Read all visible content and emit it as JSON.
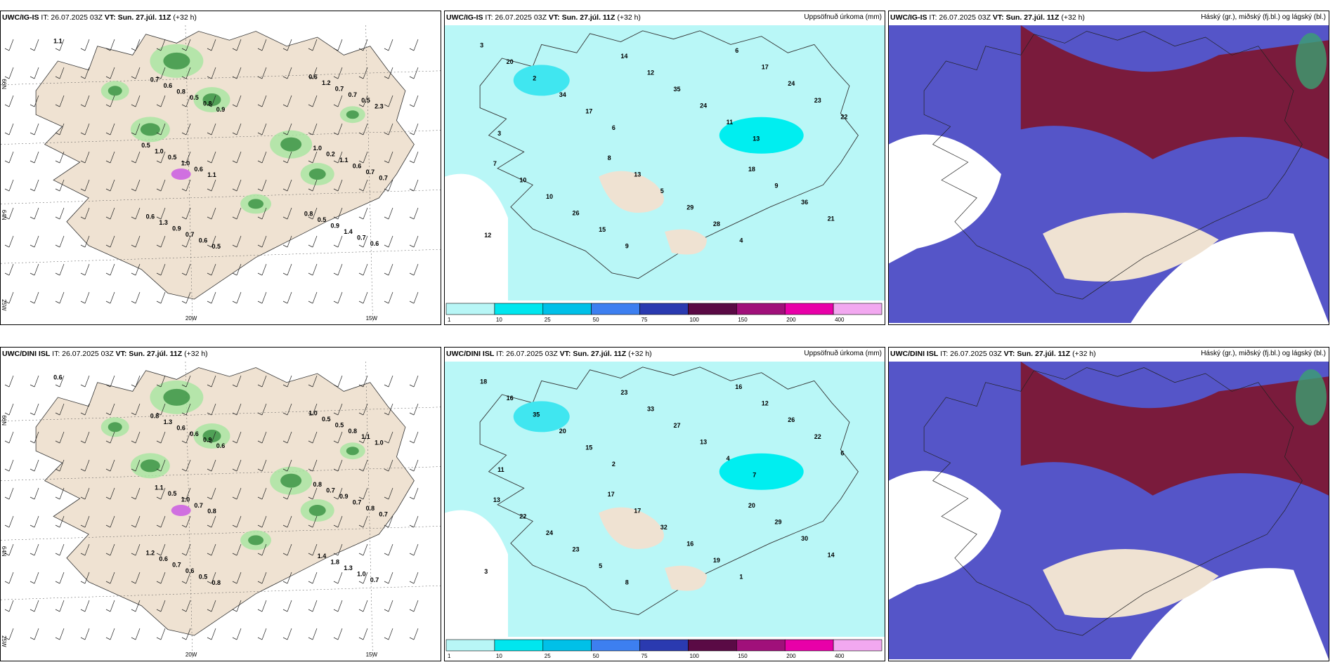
{
  "panels": [
    {
      "model": "UWC/IG-IS",
      "it": "26.07.2025 03Z",
      "vt": "Sun. 27.júl. 11Z",
      "lead": "(+32 h)",
      "title": "",
      "type": "wind",
      "values": [
        "1.1",
        "0.9",
        "0.7",
        "0.5",
        "2.3",
        "1.1",
        "0.6",
        "0.8",
        "0.7",
        "0.6",
        "0.5",
        "0.6",
        "0.7",
        "0.5",
        "0.6",
        "0.7",
        "0.7",
        "1.0",
        "1.4",
        "0.8",
        "1.1",
        "0.9",
        "0.7",
        "0.5",
        "0.9",
        "0.6",
        "0.2",
        "1.3",
        "1.2",
        "1.0",
        "0.5",
        "0.7",
        "1.0",
        "0.6",
        "0.6",
        "0.5",
        "0.8"
      ]
    },
    {
      "model": "UWC/IG-IS",
      "it": "26.07.2025 03Z",
      "vt": "Sun. 27.júl. 11Z",
      "lead": "(+32 h)",
      "title": "Uppsöfnuð úrkoma (mm)",
      "type": "precip",
      "values": [
        "3",
        "8",
        "6",
        "7",
        "14",
        "18",
        "20",
        "13",
        "17",
        "10",
        "12",
        "9",
        "2",
        "5",
        "24",
        "10",
        "35",
        "36",
        "34",
        "29",
        "23",
        "26",
        "24",
        "21",
        "17",
        "28",
        "22",
        "15",
        "11",
        "12",
        "6",
        "4",
        "3",
        "9",
        "13"
      ]
    },
    {
      "model": "UWC/IG-IS",
      "it": "26.07.2025 03Z",
      "vt": "Sun. 27.júl. 11Z",
      "lead": "(+32 h)",
      "title": "Háský (gr.), miðský (fj.bl.) og lágský (bl.)",
      "type": "cloud",
      "values": []
    },
    {
      "model": "UWC/DINI ISL",
      "it": "26.07.2025 03Z",
      "vt": "Sun. 27.júl. 11Z",
      "lead": "(+32 h)",
      "title": "",
      "type": "wind",
      "values": [
        "0.6",
        "0.6",
        "0.7",
        "0.8",
        "1.0",
        "0.8",
        "0.7",
        "0.9",
        "0.8",
        "0.5",
        "1.1",
        "0.7",
        "1.0",
        "0.6",
        "0.7",
        "0.6",
        "0.8",
        "1.0",
        "1.3",
        "0.6",
        "0.9",
        "0.7",
        "0.5",
        "0.5",
        "1.8",
        "1.3",
        "0.7",
        "0.6",
        "0.5",
        "1.1",
        "1.4",
        "0.8",
        "0.8",
        "1.2",
        "1.0"
      ]
    },
    {
      "model": "UWC/DINI ISL",
      "it": "26.07.2025 03Z",
      "vt": "Sun. 27.júl. 11Z",
      "lead": "(+32 h)",
      "title": "Uppsöfnuð úrkoma (mm)",
      "type": "precip",
      "values": [
        "18",
        "17",
        "16",
        "13",
        "23",
        "20",
        "16",
        "17",
        "12",
        "22",
        "33",
        "29",
        "35",
        "32",
        "26",
        "24",
        "27",
        "30",
        "20",
        "16",
        "22",
        "23",
        "13",
        "14",
        "15",
        "19",
        "6",
        "5",
        "4",
        "3",
        "2",
        "1",
        "11",
        "8",
        "7"
      ]
    },
    {
      "model": "UWC/DINI ISL",
      "it": "26.07.2025 03Z",
      "vt": "Sun. 27.júl. 11Z",
      "lead": "(+32 h)",
      "title": "Háský (gr.), miðský (fj.bl.) og lágský (bl.)",
      "type": "cloud",
      "values": []
    }
  ],
  "axis_labels": {
    "lon_left": "20W",
    "lon_right": "15W",
    "lat_top": "66N",
    "lat_mid": "64N",
    "lat_bottom": "25W"
  },
  "colorbar": {
    "labels": [
      "1",
      "10",
      "25",
      "50",
      "75",
      "100",
      "150",
      "200",
      "400"
    ],
    "colors": [
      "#b8f6f6",
      "#00e6ee",
      "#00c0e8",
      "#3d7ff0",
      "#2a3ab0",
      "#5a0a45",
      "#a0107a",
      "#e800a8",
      "#f2a8f0"
    ]
  },
  "colors": {
    "land": "#efe2d2",
    "sea": "#ffffff",
    "precip_bg": "#b9f7f7",
    "wind_green": "#2f8a3a",
    "cloud_high": "#7a1b3c",
    "cloud_mid": "#5555c8",
    "cloud_low": "#aab4f0"
  }
}
